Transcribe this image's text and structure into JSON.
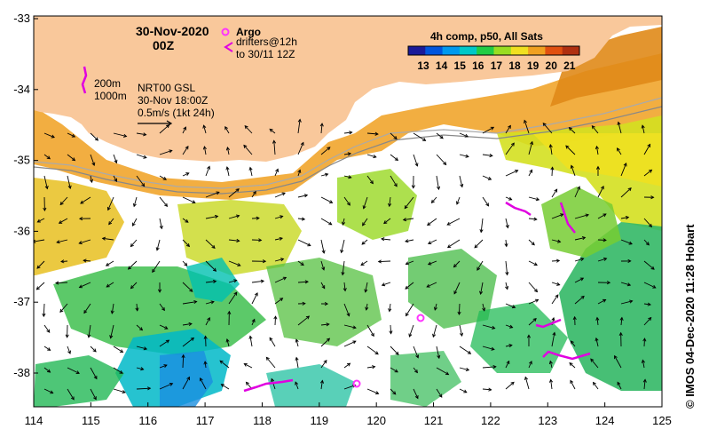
{
  "date": "30-Nov-2020",
  "time": "00Z",
  "legend": {
    "argo": "Argo",
    "drifters_line1": "drifters@12h",
    "drifters_line2": "to 30/11 12Z",
    "argo_color": "#ff33ff",
    "drifter_color": "#e000e0"
  },
  "isobaths": {
    "shallow": "200m",
    "deep": "1000m"
  },
  "currents_info": {
    "product": "NRT00 GSL",
    "analysis_time": "30-Nov 18:00Z",
    "scale_label": "0.5m/s (1kt 24h)"
  },
  "colorbar": {
    "title": "4h comp, p50, All Sats",
    "labels": [
      "13",
      "14",
      "15",
      "16",
      "17",
      "18",
      "19",
      "20",
      "21"
    ],
    "colors": [
      "#1a1a99",
      "#0055dd",
      "#0099ee",
      "#00c8c8",
      "#22cc44",
      "#99dd22",
      "#f0e020",
      "#f0a020",
      "#e05010",
      "#b03010"
    ]
  },
  "axes": {
    "x_ticks": [
      "114",
      "115",
      "116",
      "117",
      "118",
      "119",
      "120",
      "121",
      "122",
      "123",
      "124",
      "125"
    ],
    "y_ticks": [
      "-33",
      "-34",
      "-35",
      "-36",
      "-37",
      "-38"
    ]
  },
  "credit": "© IMOS 04-Dec-2020 11:28 Hobart",
  "land_color": "#f9c89b"
}
